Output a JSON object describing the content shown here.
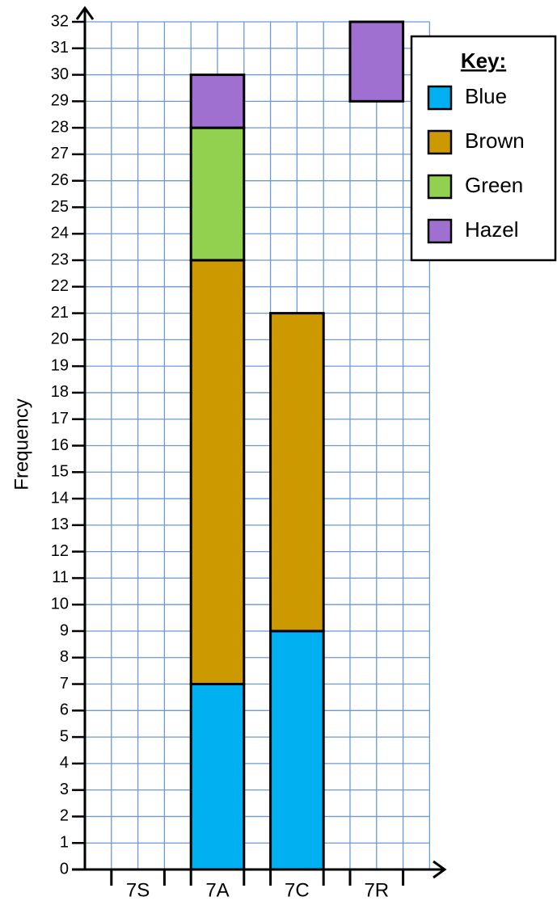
{
  "chart_data": {
    "type": "stacked_bar",
    "y_label": "Frequency",
    "categories": [
      "7S",
      "7A",
      "7C",
      "7R"
    ],
    "series": [
      {
        "name": "Blue",
        "color": "#00b0f0",
        "values": [
          null,
          7,
          9,
          null
        ]
      },
      {
        "name": "Brown",
        "color": "#cc9900",
        "values": [
          null,
          16,
          12,
          null
        ]
      },
      {
        "name": "Green",
        "color": "#92d050",
        "values": [
          null,
          5,
          null,
          null
        ]
      },
      {
        "name": "Hazel",
        "color": "#a070d0",
        "values": [
          null,
          2,
          null,
          [
            29,
            32
          ]
        ]
      }
    ],
    "legend_title": "Key:",
    "legend": "top-right",
    "ylim": [
      0,
      32
    ],
    "yticks": [
      0,
      1,
      2,
      3,
      4,
      5,
      6,
      7,
      8,
      9,
      10,
      11,
      12,
      13,
      14,
      15,
      16,
      17,
      18,
      19,
      20,
      21,
      22,
      23,
      24,
      25,
      26,
      27,
      28,
      29,
      30,
      31,
      32
    ],
    "grid": true
  }
}
